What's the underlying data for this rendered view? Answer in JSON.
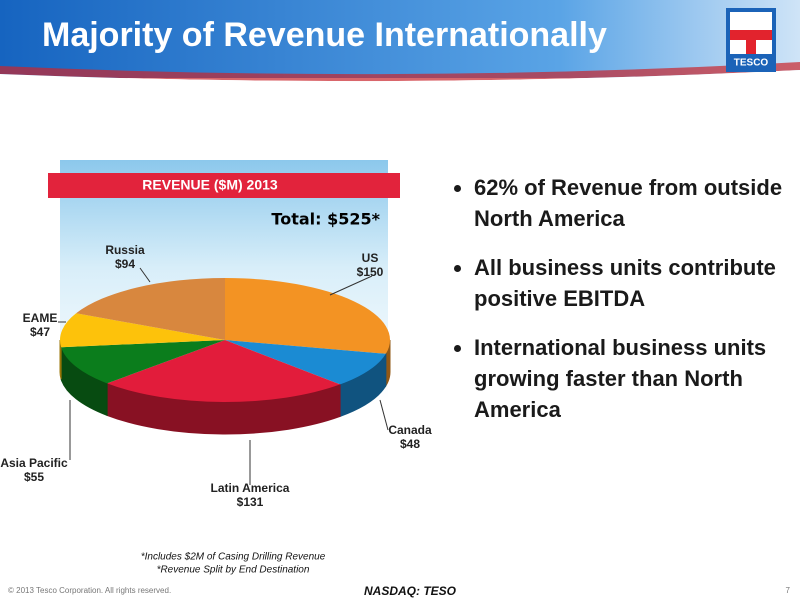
{
  "slide": {
    "title": "Majority of Revenue Internationally",
    "logo_text": "TESCO",
    "bullets": [
      "62% of Revenue from outside North America",
      "All business units contribute positive EBITDA",
      "International business units growing faster than North America"
    ],
    "footnotes": [
      "*Includes $2M of Casing Drilling Revenue",
      "*Revenue Split by End Destination"
    ],
    "copyright": "© 2013 Tesco Corporation. All rights reserved.",
    "ticker": "NASDAQ: TESO",
    "page_number": 7
  },
  "chart_data": {
    "type": "pie",
    "title": "REVENUE ($M) 2013",
    "annotation": "Total: $525*",
    "categories": [
      "US",
      "Canada",
      "Latin America",
      "Asia Pacific",
      "EAME",
      "Russia"
    ],
    "values": [
      150,
      48,
      131,
      55,
      47,
      94
    ],
    "value_labels": [
      "$150",
      "$48",
      "$131",
      "$55",
      "$47",
      "$94"
    ],
    "colors": [
      "#f39323",
      "#1b8bd3",
      "#e21c3b",
      "#0b7d1c",
      "#fdc20b",
      "#d8873e"
    ]
  }
}
